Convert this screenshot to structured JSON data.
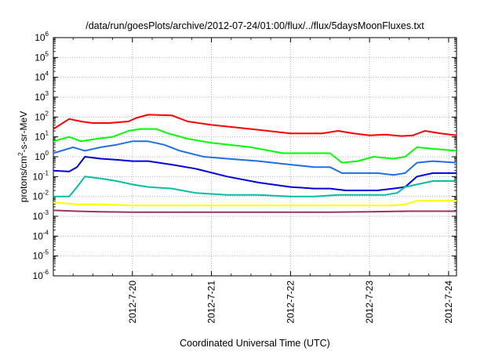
{
  "chart_data": {
    "type": "line",
    "title": "/data/run/goesPlots/archive/2012-07-24/01:00/flux/../flux/5daysMoonFluxes.txt",
    "xlabel": "Coordinated Universal Time (UTC)",
    "ylabel": {
      "base": "protons/cm",
      "sup": "2",
      "rest": "-s-sr-MeV"
    },
    "x_tick_labels": [
      "2012-7-20",
      "2012-7-21",
      "2012-7-22",
      "2012-7-23",
      "2012-7-24"
    ],
    "x_tick_positions_days": [
      1,
      2,
      3,
      4,
      5
    ],
    "xlim_days": [
      0,
      5.1
    ],
    "y_scale": "log",
    "ylim": [
      1e-06,
      1000000.0
    ],
    "y_tick_exponents": [
      -6,
      -5,
      -4,
      -3,
      -2,
      -1,
      0,
      1,
      2,
      3,
      4,
      5,
      6
    ],
    "grid": true,
    "series": [
      {
        "color": "#ff0000",
        "x": [
          0,
          0.2,
          0.35,
          0.5,
          0.7,
          0.95,
          1.05,
          1.2,
          1.5,
          1.7,
          2.0,
          2.5,
          3.0,
          3.4,
          3.6,
          3.8,
          4.0,
          4.2,
          4.4,
          4.55,
          4.7,
          4.9,
          5.1
        ],
        "y": [
          25,
          80,
          60,
          50,
          50,
          60,
          90,
          130,
          120,
          60,
          40,
          25,
          15,
          15,
          20,
          15,
          12,
          13,
          11,
          12,
          20,
          15,
          12
        ]
      },
      {
        "color": "#00ff00",
        "x": [
          0,
          0.2,
          0.35,
          0.55,
          0.75,
          0.95,
          1.1,
          1.3,
          1.45,
          1.7,
          2.0,
          2.5,
          2.9,
          3.3,
          3.5,
          3.65,
          3.85,
          4.05,
          4.3,
          4.45,
          4.6,
          4.8,
          5.1
        ],
        "y": [
          6,
          10,
          6,
          8,
          10,
          20,
          25,
          25,
          15,
          8,
          5,
          3,
          1.5,
          1.5,
          1.5,
          0.5,
          0.6,
          1,
          0.8,
          1,
          3,
          2.5,
          2
        ]
      },
      {
        "color": "#1f6fe8",
        "x": [
          0,
          0.25,
          0.4,
          0.6,
          0.8,
          1.0,
          1.2,
          1.4,
          1.6,
          1.9,
          2.2,
          2.6,
          3.0,
          3.3,
          3.5,
          3.65,
          3.9,
          4.1,
          4.3,
          4.45,
          4.6,
          4.8,
          5.1
        ],
        "y": [
          1.5,
          3,
          2,
          3,
          4,
          6,
          6,
          4,
          2,
          1,
          0.8,
          0.6,
          0.4,
          0.3,
          0.3,
          0.15,
          0.15,
          0.15,
          0.12,
          0.15,
          0.5,
          0.6,
          0.5
        ]
      },
      {
        "color": "#0000dd",
        "x": [
          0,
          0.2,
          0.3,
          0.4,
          0.6,
          0.8,
          1.0,
          1.2,
          1.5,
          1.8,
          2.2,
          2.6,
          3.0,
          3.3,
          3.5,
          3.7,
          3.9,
          4.1,
          4.3,
          4.45,
          4.6,
          4.8,
          5.1
        ],
        "y": [
          0.2,
          0.18,
          0.3,
          1,
          0.8,
          0.7,
          0.6,
          0.6,
          0.4,
          0.25,
          0.1,
          0.05,
          0.03,
          0.025,
          0.025,
          0.02,
          0.02,
          0.02,
          0.025,
          0.03,
          0.1,
          0.15,
          0.15
        ]
      },
      {
        "color": "#00c0a0",
        "x": [
          0,
          0.2,
          0.3,
          0.4,
          0.6,
          0.8,
          1.0,
          1.2,
          1.5,
          1.8,
          2.2,
          2.6,
          3.0,
          3.3,
          3.6,
          3.9,
          4.2,
          4.35,
          4.45,
          4.6,
          4.8,
          5.1
        ],
        "y": [
          0.01,
          0.01,
          0.03,
          0.1,
          0.08,
          0.06,
          0.04,
          0.03,
          0.025,
          0.015,
          0.012,
          0.012,
          0.01,
          0.01,
          0.012,
          0.012,
          0.012,
          0.015,
          0.03,
          0.04,
          0.06,
          0.06
        ]
      },
      {
        "color": "#ffff00",
        "x": [
          0,
          0.3,
          0.6,
          1.0,
          1.5,
          2.0,
          2.5,
          3.0,
          3.5,
          4.0,
          4.3,
          4.45,
          4.6,
          4.8,
          5.1
        ],
        "y": [
          0.005,
          0.004,
          0.004,
          0.0035,
          0.0035,
          0.0035,
          0.0035,
          0.0035,
          0.0035,
          0.0035,
          0.0035,
          0.004,
          0.006,
          0.006,
          0.006
        ]
      },
      {
        "color": "#993366",
        "x": [
          0,
          0.3,
          0.6,
          1.0,
          1.5,
          2.0,
          2.5,
          3.0,
          3.5,
          4.0,
          4.5,
          4.8,
          5.1
        ],
        "y": [
          0.002,
          0.0018,
          0.0017,
          0.0016,
          0.0016,
          0.0016,
          0.0016,
          0.0016,
          0.0016,
          0.0017,
          0.0018,
          0.0018,
          0.0018
        ]
      }
    ]
  }
}
